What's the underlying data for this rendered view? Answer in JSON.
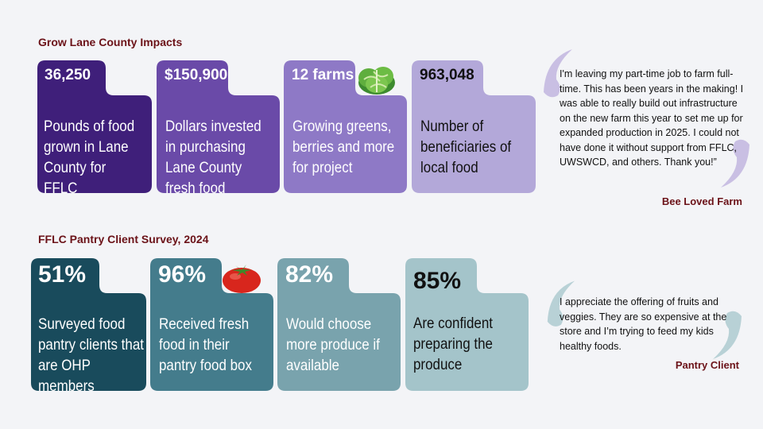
{
  "section1": {
    "title": "Grow Lane County Impacts",
    "cards": [
      {
        "value": "36,250",
        "desc": "Pounds of food grown in Lane County for FFLC",
        "color": "#3f1f7a"
      },
      {
        "value": "$150,900",
        "desc": "Dollars invested in purchasing Lane County fresh food",
        "color": "#6a4aa8"
      },
      {
        "value": "12 farms",
        "desc": "Growing greens, berries and more for project",
        "color": "#8e79c6"
      },
      {
        "value": "963,048",
        "desc": "Number of beneficiaries of local food",
        "color": "#b3a8d9"
      }
    ],
    "quote": {
      "text": "I'm leaving my part-time job to farm full-time. This has been years in the making! I was able to really build out infrastructure on the new farm this year to set me up for expanded production in 2025. I could not have done it without support from FFLC, UWSWCD, and others. Thank you!”",
      "attribution": "Bee Loved Farm",
      "mark_color": "#c9bfe3"
    }
  },
  "section2": {
    "title": "FFLC Pantry Client Survey, 2024",
    "cards": [
      {
        "value": "51%",
        "desc": "Surveyed food pantry clients that are OHP members",
        "color": "#194b5c"
      },
      {
        "value": "96%",
        "desc": "Received fresh food in their pantry food box",
        "color": "#447c8c"
      },
      {
        "value": "82%",
        "desc": "Would choose more produce if available",
        "color": "#79a3ad"
      },
      {
        "value": "85%",
        "desc": "Are confident preparing the produce",
        "color": "#a4c4ca"
      }
    ],
    "quote": {
      "text": "I appreciate the offering of fruits and veggies. They are so expensive at the store and I’m trying to feed my kids healthy foods.",
      "attribution": "Pantry Client",
      "mark_color": "#b8d1d6"
    }
  },
  "icons": [
    "lettuce-icon",
    "tomato-icon"
  ]
}
